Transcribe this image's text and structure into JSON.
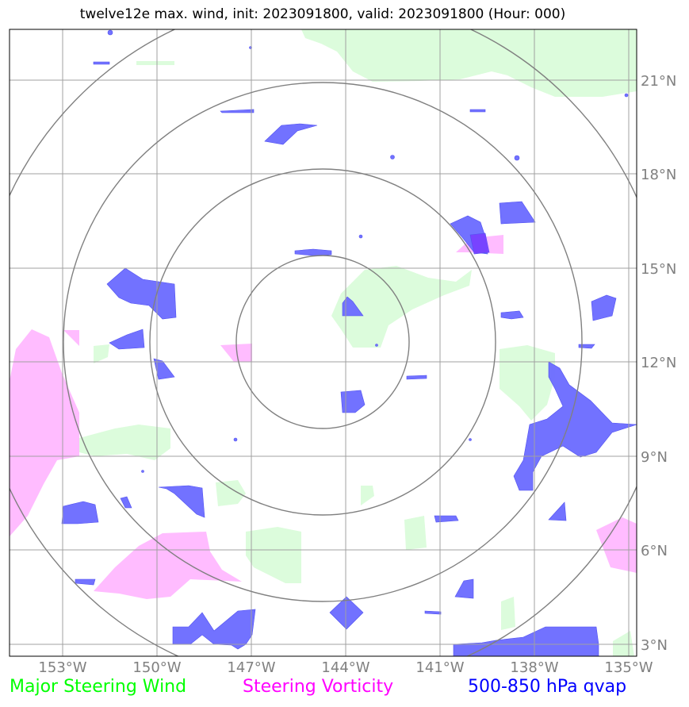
{
  "title": "twelve12e max. wind, init: 2023091800, valid: 2023091800 (Hour: 000)",
  "map": {
    "lon_labels": [
      "153°W",
      "150°W",
      "147°W",
      "144°W",
      "141°W",
      "138°W",
      "135°W"
    ],
    "lat_labels": [
      "21°N",
      "18°N",
      "15°N",
      "12°N",
      "9°N",
      "6°N",
      "3°N"
    ],
    "range_rings": 4,
    "colors": {
      "wind": "#dcfcdc",
      "vorticity": "#ffbcff",
      "qvap": "#6a6aff",
      "grid": "#a0a0a0",
      "rings": "#808080"
    }
  },
  "legend": {
    "wind": {
      "label": "Major Steering Wind",
      "color": "#00ff00"
    },
    "vorticity": {
      "label": "Steering Vorticity",
      "color": "#ff00ff"
    },
    "qvap": {
      "label": "500-850 hPa qvap",
      "color": "#0000ff"
    }
  }
}
